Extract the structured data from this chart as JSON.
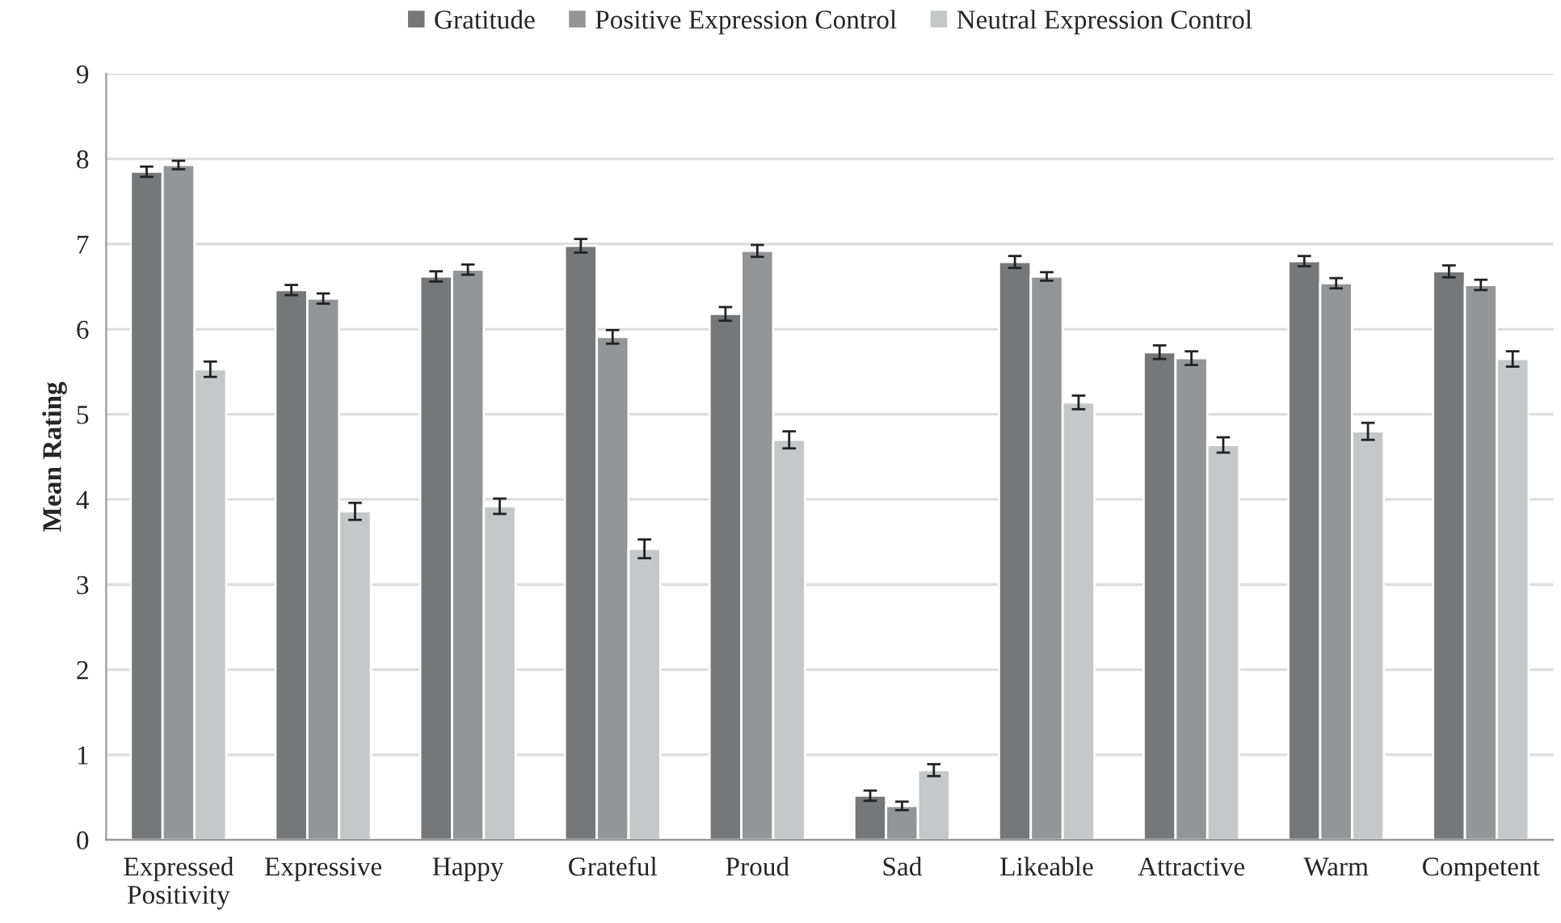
{
  "chart_data": {
    "type": "bar",
    "ylabel": "Mean Rating",
    "categories": [
      "Expressed\nPositivity",
      "Expressive",
      "Happy",
      "Grateful",
      "Proud",
      "Sad",
      "Likeable",
      "Attractive",
      "Warm",
      "Competent"
    ],
    "series": [
      {
        "name": "Gratitude",
        "color": "#76777b",
        "values": [
          7.85,
          6.46,
          6.62,
          6.98,
          6.18,
          0.52,
          6.79,
          5.73,
          6.8,
          6.68
        ],
        "errors": [
          0.06,
          0.06,
          0.06,
          0.08,
          0.08,
          0.06,
          0.07,
          0.08,
          0.06,
          0.07
        ]
      },
      {
        "name": "Positive Expression Control",
        "color": "#949599",
        "values": [
          7.93,
          6.36,
          6.7,
          5.91,
          6.92,
          0.4,
          6.62,
          5.66,
          6.54,
          6.52
        ],
        "errors": [
          0.05,
          0.06,
          0.06,
          0.08,
          0.07,
          0.05,
          0.05,
          0.08,
          0.06,
          0.06
        ]
      },
      {
        "name": "Neutral Expression Control",
        "color": "#c6c7c9",
        "values": [
          5.53,
          3.86,
          3.92,
          3.42,
          4.7,
          0.82,
          5.14,
          4.64,
          4.8,
          5.65
        ],
        "errors": [
          0.09,
          0.1,
          0.09,
          0.11,
          0.1,
          0.07,
          0.08,
          0.09,
          0.1,
          0.09
        ]
      }
    ],
    "ylim": [
      0,
      9
    ],
    "yticks": [
      0,
      1,
      2,
      3,
      4,
      5,
      6,
      7,
      8,
      9
    ],
    "grid": "y",
    "legend": "top"
  }
}
